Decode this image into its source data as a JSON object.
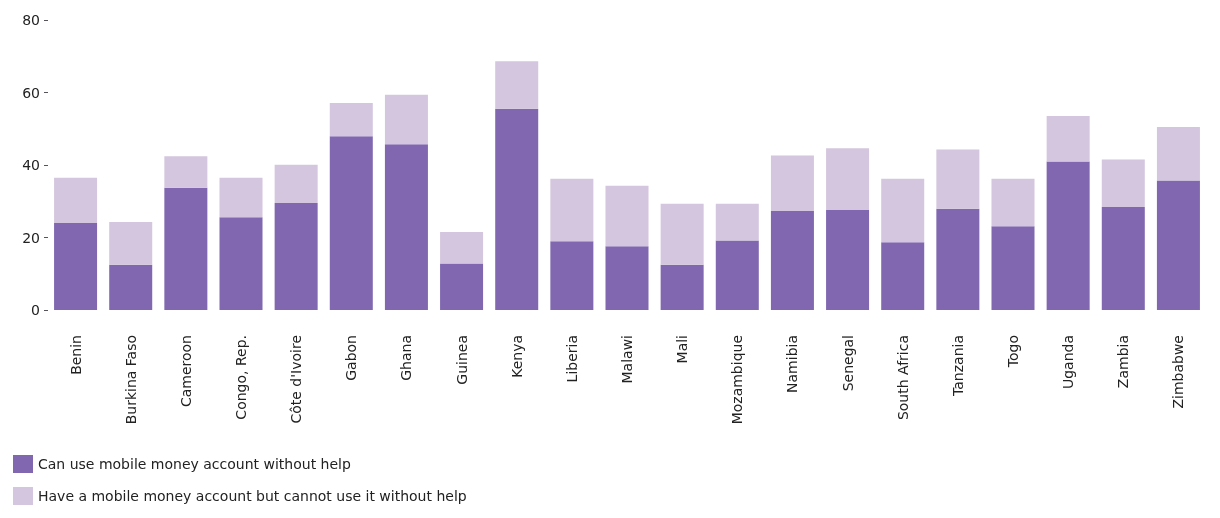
{
  "chart_data": {
    "type": "bar",
    "stacked": true,
    "categories": [
      "Benin",
      "Burkina Faso",
      "Cameroon",
      "Congo, Rep.",
      "Côte d'Ivoire",
      "Gabon",
      "Ghana",
      "Guinea",
      "Kenya",
      "Liberia",
      "Malawi",
      "Mali",
      "Mozambique",
      "Namibia",
      "Senegal",
      "South Africa",
      "Tanzania",
      "Togo",
      "Uganda",
      "Zambia",
      "Zimbabwe"
    ],
    "series": [
      {
        "name": "Can use mobile money account without help",
        "color": "#8067b0",
        "values": [
          24.0,
          12.5,
          33.7,
          25.6,
          29.5,
          47.9,
          45.7,
          12.8,
          55.5,
          19.0,
          17.6,
          12.5,
          19.2,
          27.3,
          27.6,
          18.7,
          27.9,
          23.1,
          41.0,
          28.4,
          35.7
        ]
      },
      {
        "name": "Have a mobile money account but cannot use it without help",
        "color": "#d4c6de",
        "values": [
          12.5,
          11.8,
          8.7,
          10.9,
          10.6,
          9.2,
          13.7,
          8.7,
          13.1,
          17.2,
          16.7,
          16.8,
          10.1,
          15.3,
          17.0,
          17.5,
          16.4,
          13.1,
          12.5,
          13.1,
          14.8
        ]
      }
    ],
    "ylim": [
      0,
      80
    ],
    "yticks": [
      0,
      20,
      40,
      60,
      80
    ],
    "grid": false,
    "legend": "bottom left"
  }
}
